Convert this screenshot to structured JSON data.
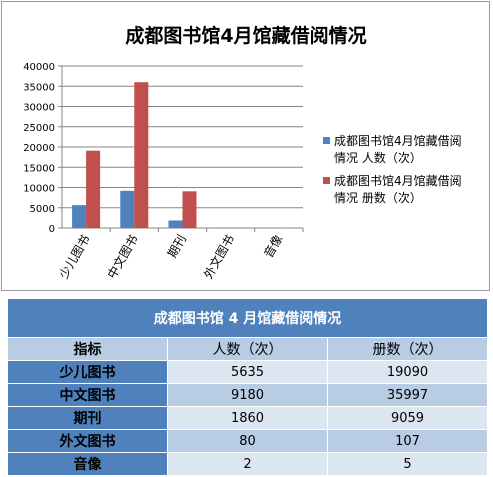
{
  "colors": {
    "series1": "#4f81bd",
    "series2": "#c0504d",
    "axis": "#868686",
    "grid": "#868686",
    "table_header": "#4f81bd",
    "table_light": "#dce6f1",
    "table_mid": "#b8cce4"
  },
  "chart_data": {
    "type": "bar",
    "title": "成都图书馆4月馆藏借阅情况",
    "categories": [
      "少儿图书",
      "中文图书",
      "期刊",
      "外文图书",
      "音像"
    ],
    "series": [
      {
        "name": "成都图书馆4月馆藏借阅情况 人数（次）",
        "legend_lines": [
          "成都图书馆4月馆藏借阅",
          "情况 人数（次）"
        ],
        "values": [
          5635,
          9180,
          1860,
          80,
          2
        ]
      },
      {
        "name": "成都图书馆4月馆藏借阅情况 册数（次）",
        "legend_lines": [
          "成都图书馆4月馆藏借阅",
          "情况 册数（次）"
        ],
        "values": [
          19090,
          35997,
          9059,
          107,
          5
        ]
      }
    ],
    "yticks": [
      "0",
      "5000",
      "10000",
      "15000",
      "20000",
      "25000",
      "30000",
      "35000",
      "40000"
    ],
    "ylim": [
      0,
      40000
    ],
    "grid": true,
    "legend_position": "right"
  },
  "table": {
    "title": "成都图书馆 4 月馆藏借阅情况",
    "headers": [
      "指标",
      "人数（次）",
      "册数（次）"
    ],
    "rows": [
      [
        "少儿图书",
        "5635",
        "19090"
      ],
      [
        "中文图书",
        "9180",
        "35997"
      ],
      [
        "期刊",
        "1860",
        "9059"
      ],
      [
        "外文图书",
        "80",
        "107"
      ],
      [
        "音像",
        "2",
        "5"
      ]
    ]
  }
}
